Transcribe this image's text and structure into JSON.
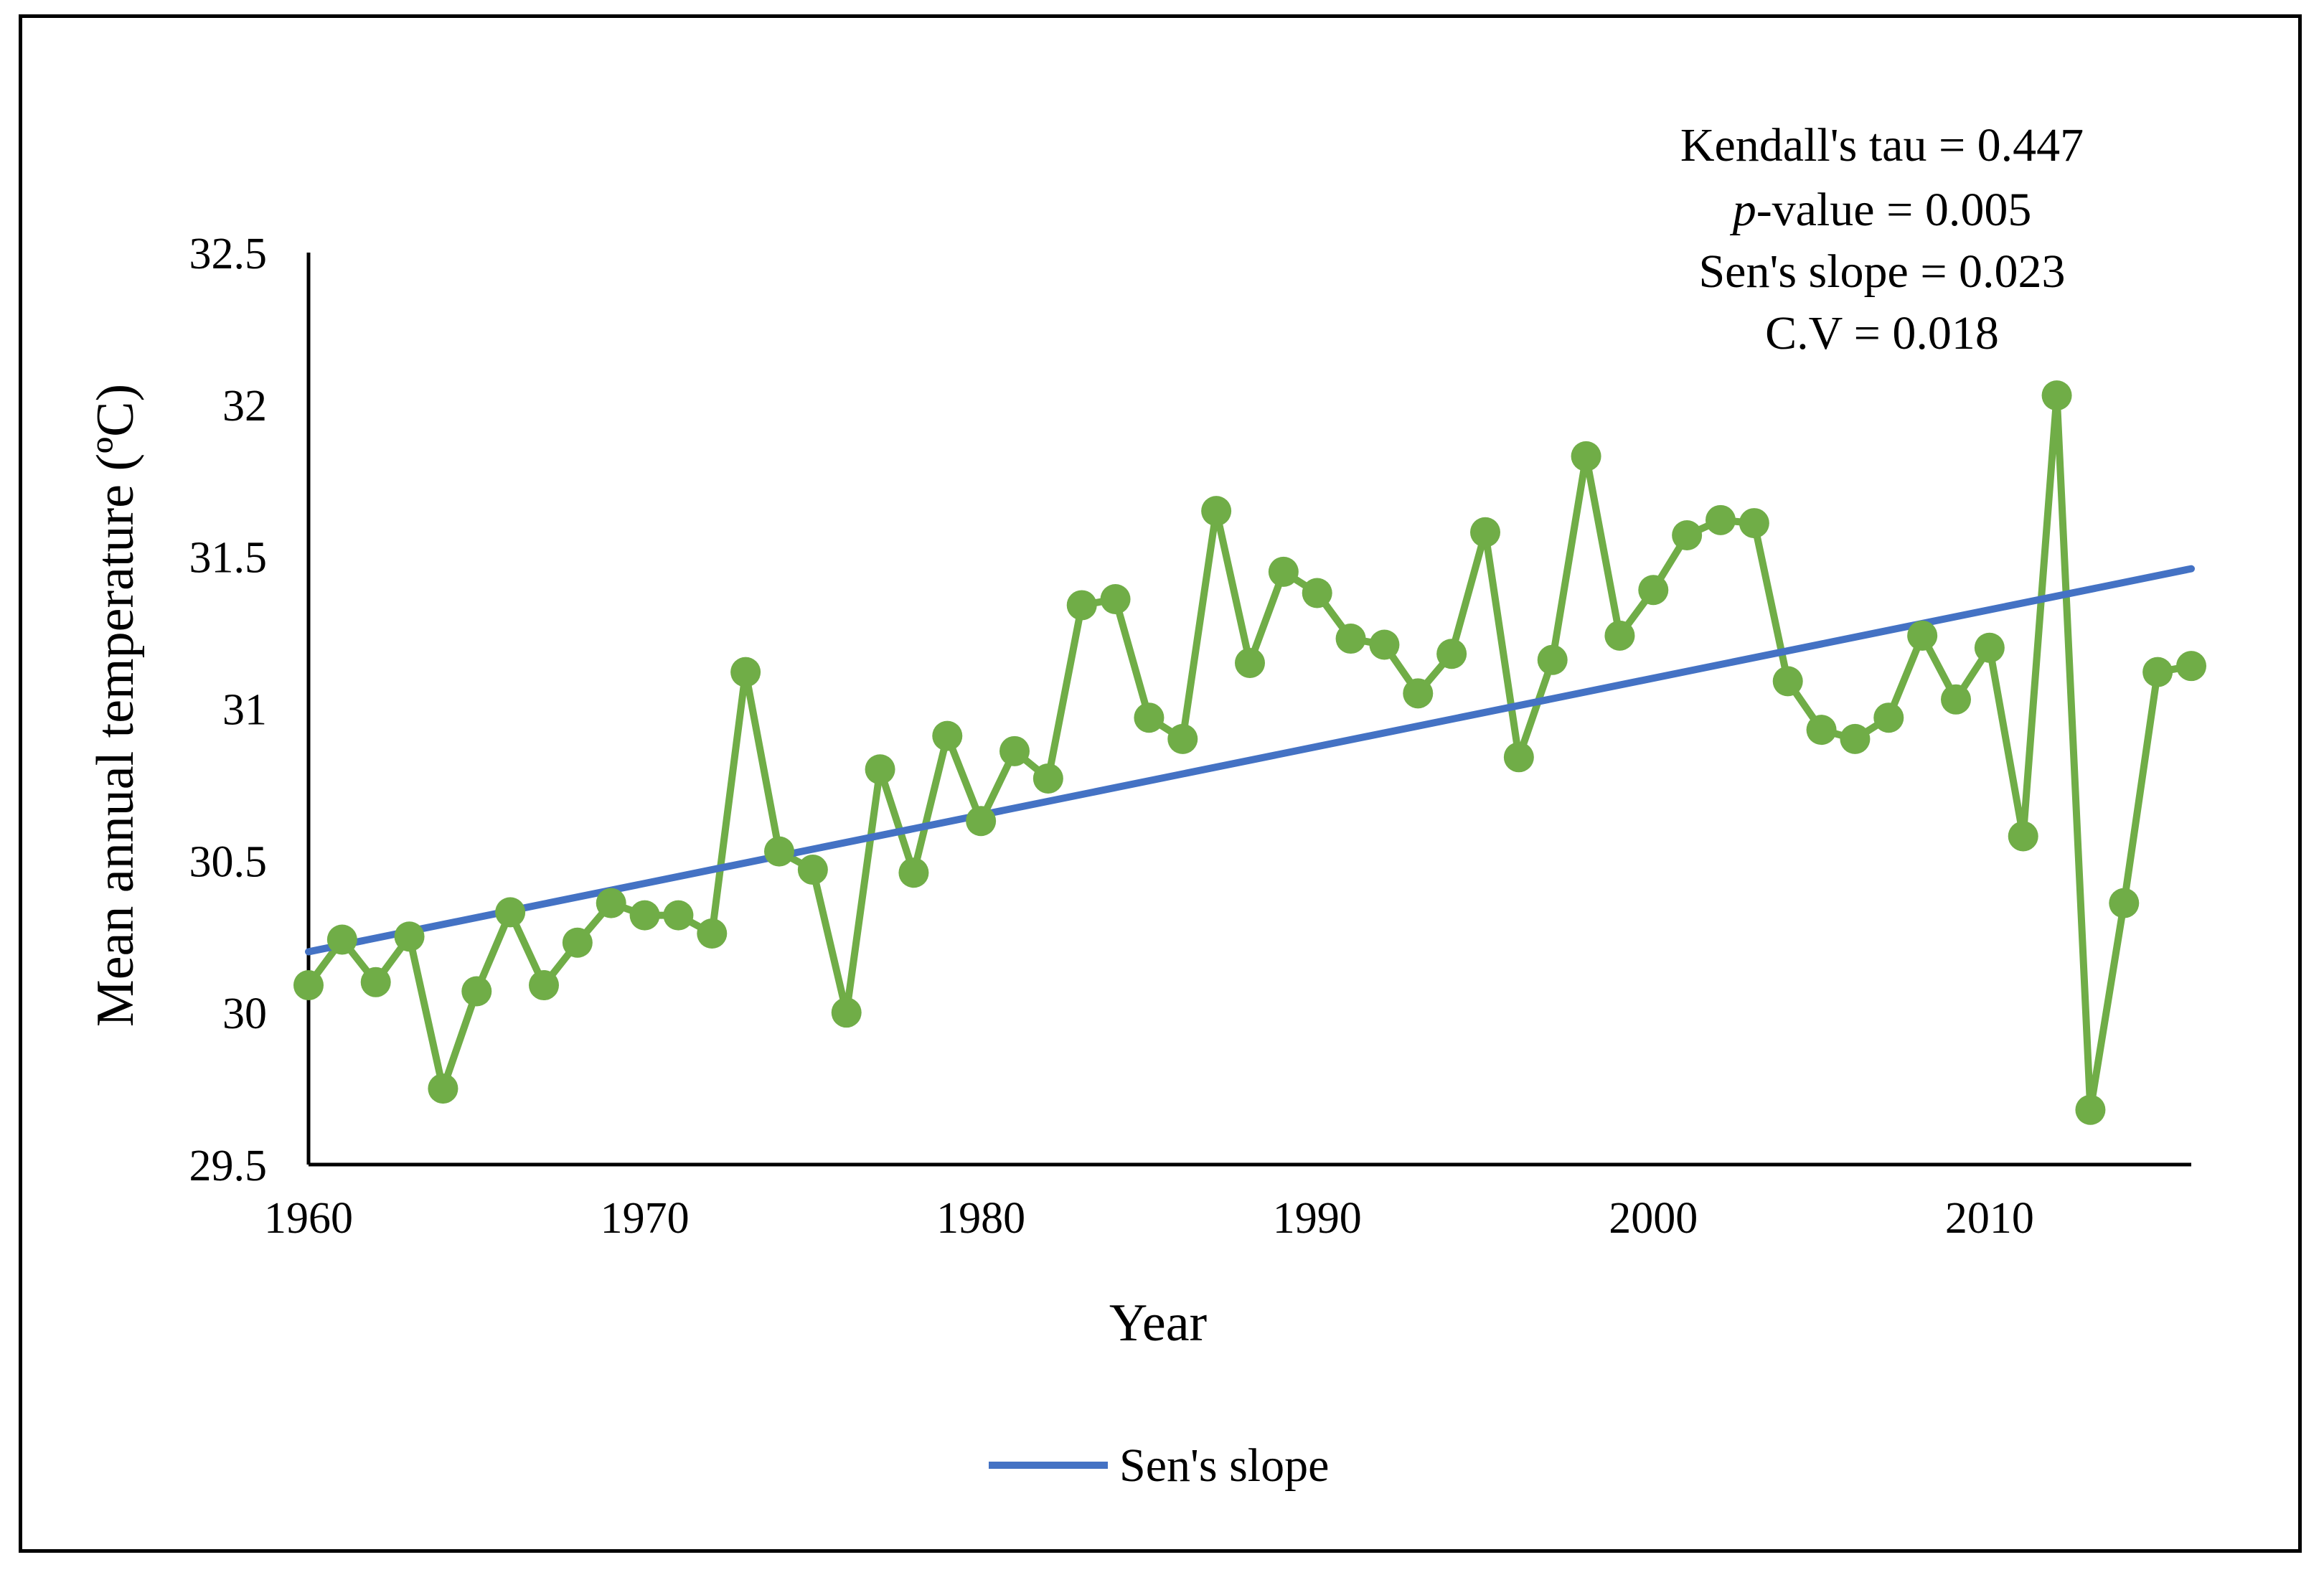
{
  "chart_data": {
    "type": "line",
    "xlabel": "Year",
    "ylabel": "Mean annual temperature (ºC)",
    "ylim": [
      29.5,
      32.5
    ],
    "xlim": [
      1960,
      2016
    ],
    "y_ticks": [
      "29.5",
      "30",
      "30.5",
      "31",
      "31.5",
      "32",
      "32.5"
    ],
    "x_ticks": [
      "1960",
      "1970",
      "1980",
      "1990",
      "2000",
      "2010"
    ],
    "grid": false,
    "legend_position": "bottom",
    "series": [
      {
        "name": "Mean annual temperature",
        "color": "#70ad47",
        "in_legend": false,
        "x": [
          1960,
          1961,
          1962,
          1963,
          1964,
          1965,
          1966,
          1967,
          1968,
          1969,
          1970,
          1971,
          1972,
          1973,
          1974,
          1975,
          1976,
          1977,
          1978,
          1979,
          1980,
          1981,
          1982,
          1983,
          1984,
          1985,
          1986,
          1987,
          1988,
          1989,
          1990,
          1991,
          1992,
          1993,
          1994,
          1995,
          1996,
          1997,
          1998,
          1999,
          2000,
          2001,
          2002,
          2003,
          2004,
          2005,
          2006,
          2007,
          2008,
          2009,
          2010,
          2011,
          2012,
          2013,
          2014,
          2015,
          2016
        ],
        "values": [
          30.09,
          30.24,
          30.1,
          30.25,
          29.75,
          30.07,
          30.33,
          30.09,
          30.23,
          30.36,
          30.32,
          30.32,
          30.26,
          31.12,
          30.53,
          30.47,
          30.0,
          30.8,
          30.46,
          30.91,
          30.63,
          30.86,
          30.77,
          31.34,
          31.36,
          30.97,
          30.9,
          31.65,
          31.15,
          31.45,
          31.38,
          31.23,
          31.21,
          31.05,
          31.18,
          31.58,
          30.84,
          31.16,
          31.83,
          31.24,
          31.39,
          31.57,
          31.62,
          31.61,
          31.09,
          30.93,
          30.9,
          30.97,
          31.24,
          31.03,
          31.2,
          30.58,
          32.03,
          29.68,
          30.36,
          31.12,
          31.14
        ]
      },
      {
        "name": "Sen's slope",
        "color": "#4472c4",
        "in_legend": true,
        "x": [
          1960,
          2016
        ],
        "values": [
          30.2,
          31.46
        ]
      }
    ],
    "annotations": {
      "kendall": "Kendall's tau = 0.447",
      "p_italic": "p",
      "p_rest": "-value = 0.005",
      "sen": "Sen's slope = 0.023",
      "cv": "C.V = 0.018"
    }
  }
}
